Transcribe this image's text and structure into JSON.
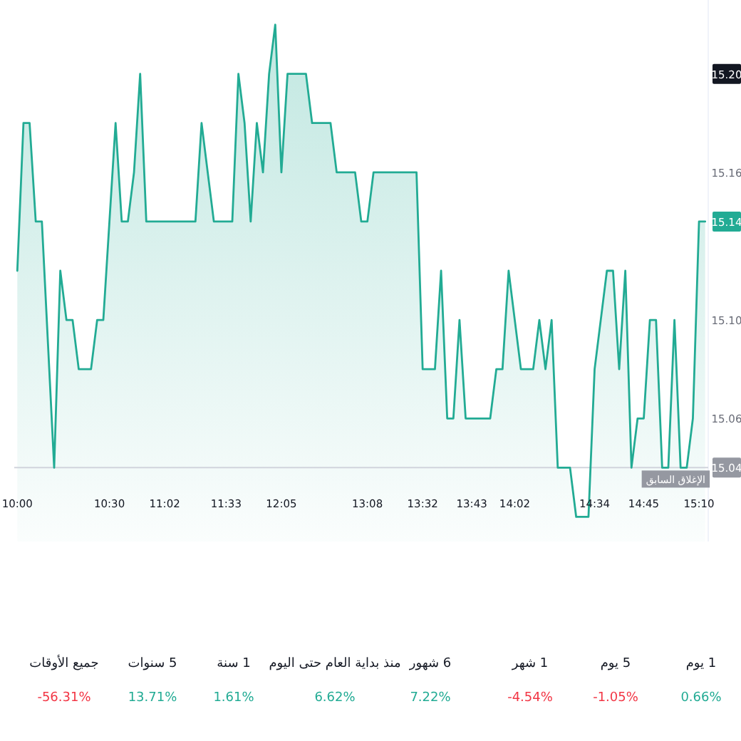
{
  "chart_data": [
    {
      "type": "area",
      "color": "#22ab94",
      "categories": [
        "10:00",
        null,
        null,
        null,
        null,
        null,
        null,
        null,
        null,
        null,
        null,
        null,
        null,
        null,
        null,
        "10:30",
        null,
        null,
        null,
        null,
        null,
        null,
        null,
        null,
        "11:02",
        null,
        null,
        null,
        null,
        null,
        null,
        null,
        null,
        null,
        "11:33",
        null,
        null,
        null,
        null,
        null,
        null,
        null,
        null,
        "12:05",
        null,
        null,
        null,
        null,
        null,
        null,
        null,
        null,
        null,
        null,
        null,
        null,
        null,
        "13:08",
        null,
        null,
        null,
        null,
        null,
        null,
        null,
        null,
        "13:32",
        null,
        null,
        null,
        null,
        null,
        null,
        null,
        "13:43",
        null,
        null,
        null,
        null,
        null,
        null,
        "14:02",
        null,
        null,
        null,
        null,
        null,
        null,
        null,
        null,
        null,
        null,
        null,
        null,
        "14:34",
        null,
        null,
        null,
        null,
        null,
        null,
        null,
        "14:45",
        null,
        null,
        null,
        null,
        null,
        null,
        null,
        null,
        "15:10",
        null
      ],
      "values": [
        15.12,
        15.18,
        15.18,
        15.14,
        15.14,
        15.09,
        15.04,
        15.12,
        15.1,
        15.1,
        15.08,
        15.08,
        15.08,
        15.1,
        15.1,
        15.14,
        15.18,
        15.14,
        15.14,
        15.16,
        15.2,
        15.14,
        15.14,
        15.14,
        15.14,
        15.14,
        15.14,
        15.14,
        15.14,
        15.14,
        15.18,
        15.16,
        15.14,
        15.14,
        15.14,
        15.14,
        15.2,
        15.18,
        15.14,
        15.18,
        15.16,
        15.2,
        15.22,
        15.16,
        15.2,
        15.2,
        15.2,
        15.2,
        15.18,
        15.18,
        15.18,
        15.18,
        15.16,
        15.16,
        15.16,
        15.16,
        15.14,
        15.14,
        15.16,
        15.16,
        15.16,
        15.16,
        15.16,
        15.16,
        15.16,
        15.16,
        15.08,
        15.08,
        15.08,
        15.12,
        15.06,
        15.06,
        15.1,
        15.06,
        15.06,
        15.06,
        15.06,
        15.06,
        15.08,
        15.08,
        15.12,
        15.1,
        15.08,
        15.08,
        15.08,
        15.1,
        15.08,
        15.1,
        15.04,
        15.04,
        15.04,
        15.02,
        15.02,
        15.02,
        15.08,
        15.1,
        15.12,
        15.12,
        15.08,
        15.12,
        15.04,
        15.06,
        15.06,
        15.1,
        15.1,
        15.04,
        15.04,
        15.1,
        15.04,
        15.04,
        15.06,
        15.14,
        15.14
      ],
      "ylim": [
        15.01,
        15.23
      ],
      "yticks": [
        15.06,
        {
          "value": 15.1,
          "label": "15.10"
        },
        15.16
      ],
      "ref_lines": [
        {
          "axis": "y",
          "value": 15.04,
          "label": "الإغلاق السابق",
          "color": "#d1d4dc"
        }
      ],
      "annotations": [
        {
          "text": "15.14",
          "y": 15.14
        },
        {
          "text": "15.20",
          "y": 15.2
        },
        {
          "text": "15.04",
          "y": 15.04
        }
      ]
    },
    {
      "type": "other",
      "categories": [
        "جميع الأوقات",
        "5 سنوات",
        "1 سنة",
        "منذ بداية العام حتى اليوم",
        "6 شهور",
        "1 شهر",
        "5 يوم",
        "1 يوم"
      ],
      "values": [
        -56.31,
        13.71,
        1.61,
        6.62,
        7.22,
        -4.54,
        -1.05,
        0.66
      ],
      "value_labels": [
        "-56.31%",
        "13.71%",
        "1.61%",
        "6.62%",
        "7.22%",
        "-4.54%",
        "-1.05%",
        "0.66%"
      ],
      "colors": [
        "#f23645",
        "#22ab94",
        "#22ab94",
        "#22ab94",
        "#22ab94",
        "#f23645",
        "#f23645",
        "#22ab94"
      ]
    }
  ]
}
